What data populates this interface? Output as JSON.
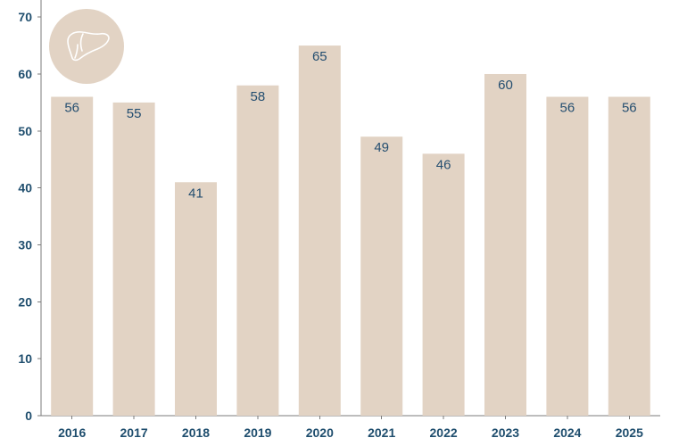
{
  "chart_data": {
    "type": "bar",
    "categories": [
      "2016",
      "2017",
      "2018",
      "2019",
      "2020",
      "2021",
      "2022",
      "2023",
      "2024",
      "2025"
    ],
    "values": [
      56,
      55,
      41,
      58,
      65,
      49,
      46,
      60,
      56,
      56
    ],
    "title": "",
    "xlabel": "",
    "ylabel": "",
    "ylim": [
      0,
      73
    ],
    "yticks": [
      0,
      10,
      20,
      30,
      40,
      50,
      60,
      70
    ],
    "grid": false,
    "legend": "none",
    "colors": {
      "bar": "#e2d3c4",
      "label": "#244e70",
      "axis": "#7b7b7b"
    }
  },
  "logo": {
    "icon": "liver-icon",
    "background": "#e2d3c4"
  }
}
